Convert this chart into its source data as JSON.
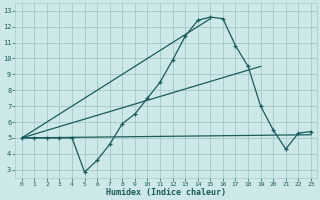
{
  "xlabel": "Humidex (Indice chaleur)",
  "bg_color": "#cce8e8",
  "grid_color": "#aacccc",
  "line_color": "#1a5c5c",
  "xlim": [
    -0.5,
    23.5
  ],
  "ylim": [
    2.5,
    13.5
  ],
  "xticks": [
    0,
    1,
    2,
    3,
    4,
    5,
    6,
    7,
    8,
    9,
    10,
    11,
    12,
    13,
    14,
    15,
    16,
    17,
    18,
    19,
    20,
    21,
    22,
    23
  ],
  "yticks": [
    3,
    4,
    5,
    6,
    7,
    8,
    9,
    10,
    11,
    12,
    13
  ],
  "main_series": {
    "x": [
      0,
      1,
      2,
      3,
      4,
      5,
      6,
      7,
      8,
      9,
      10,
      11,
      12,
      13,
      14,
      15,
      16,
      17,
      18,
      19,
      20,
      21,
      22,
      23
    ],
    "y": [
      5,
      5,
      5,
      5,
      5,
      2.85,
      3.6,
      4.6,
      5.9,
      6.5,
      7.5,
      8.5,
      9.9,
      11.4,
      12.4,
      12.6,
      12.5,
      10.8,
      9.5,
      7.0,
      5.5,
      4.3,
      5.3,
      5.4
    ]
  },
  "ref_lines": [
    {
      "x": [
        0,
        23
      ],
      "y": [
        5.0,
        5.2
      ]
    },
    {
      "x": [
        0,
        19
      ],
      "y": [
        5.0,
        9.5
      ]
    },
    {
      "x": [
        0,
        15
      ],
      "y": [
        5.0,
        12.5
      ]
    }
  ]
}
